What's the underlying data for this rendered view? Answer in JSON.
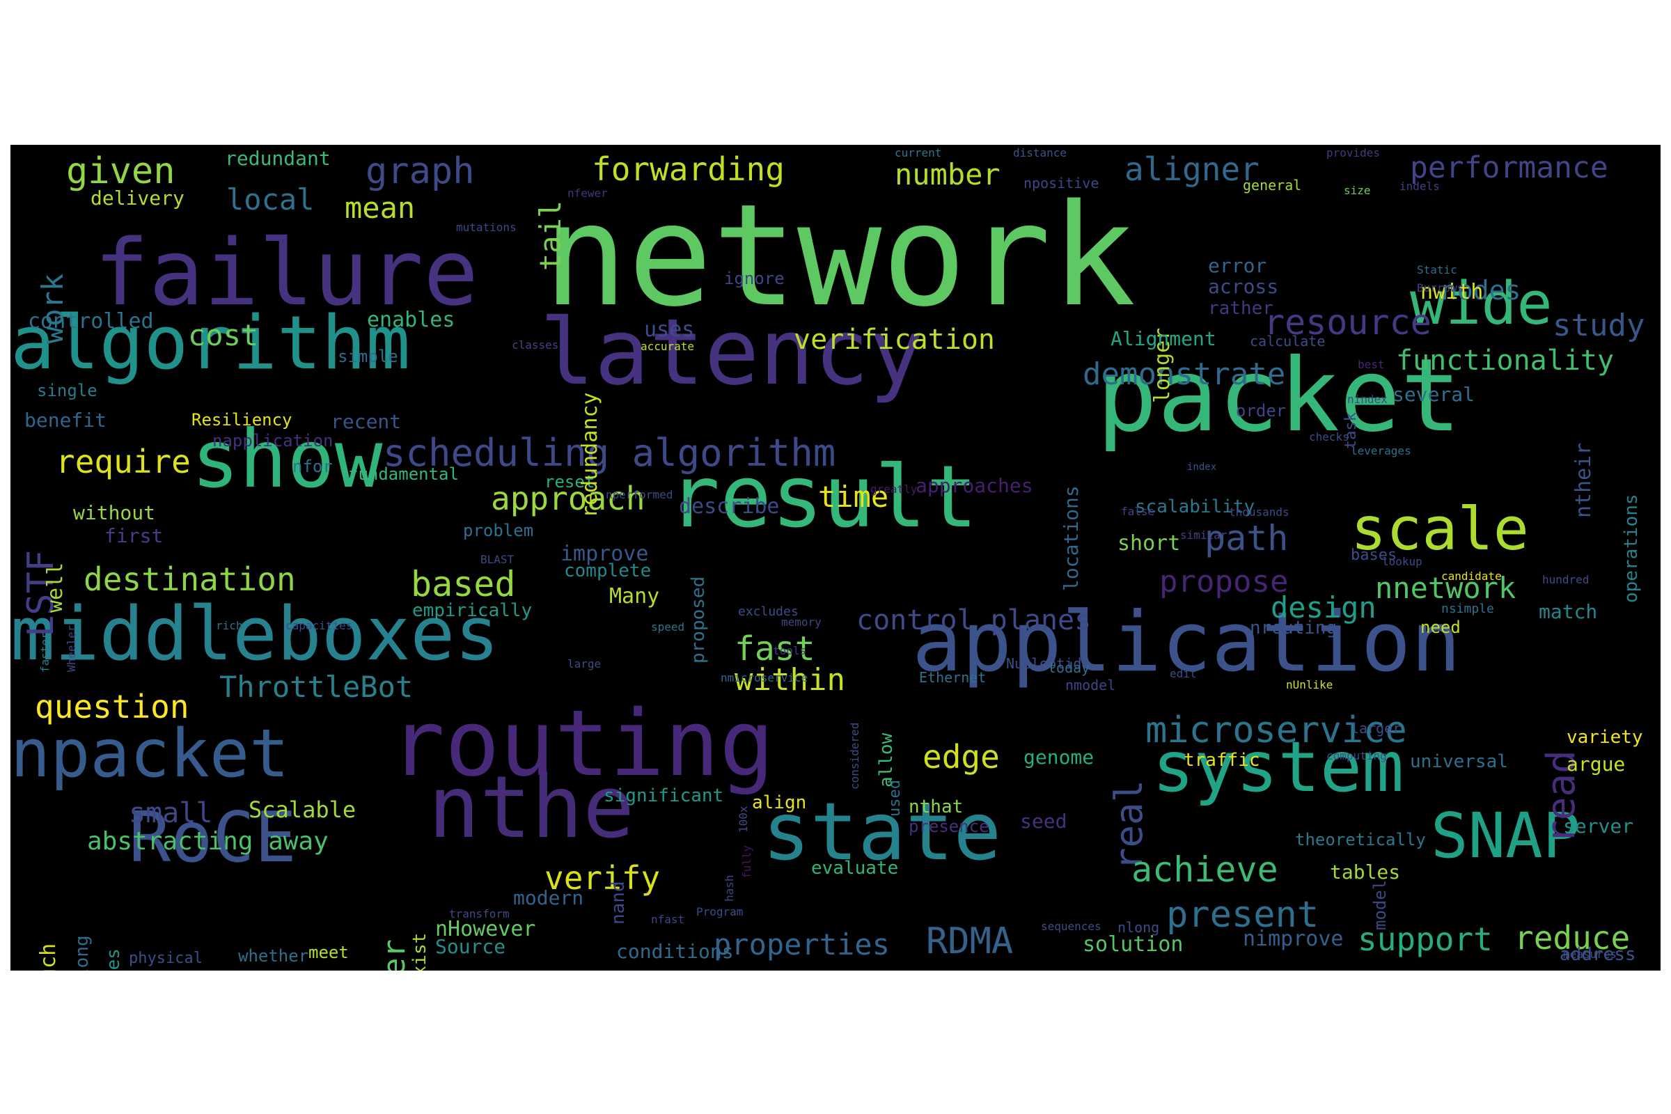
{
  "words": [
    {
      "t": "network",
      "c": "#5ec962"
    },
    {
      "t": "failure",
      "c": "#46327e"
    },
    {
      "t": "packet",
      "c": "#35b779"
    },
    {
      "t": "algorithm",
      "c": "#21918c"
    },
    {
      "t": "latency",
      "c": "#46327e"
    },
    {
      "t": "result",
      "c": "#35b779"
    },
    {
      "t": "show",
      "c": "#2fb47c"
    },
    {
      "t": "middleboxes",
      "c": "#26828e"
    },
    {
      "t": "application",
      "c": "#3b528b"
    },
    {
      "t": "routing",
      "c": "#482878"
    },
    {
      "t": "npacket",
      "c": "#365c8d"
    },
    {
      "t": "nthe",
      "c": "#472c7a"
    },
    {
      "t": "state",
      "c": "#25838e"
    },
    {
      "t": "system",
      "c": "#20a386"
    },
    {
      "t": "RoCE",
      "c": "#3b528b"
    },
    {
      "t": "SNAP",
      "c": "#1fa188"
    },
    {
      "t": "scale",
      "c": "#addc30"
    },
    {
      "t": "wide",
      "c": "#35b779"
    },
    {
      "t": "given",
      "c": "#90d743"
    },
    {
      "t": "graph",
      "c": "#3e4a89"
    },
    {
      "t": "forwarding",
      "c": "#c2df23"
    },
    {
      "t": "number",
      "c": "#b5de2b"
    },
    {
      "t": "aligner",
      "c": "#31688e"
    },
    {
      "t": "performance",
      "c": "#414487"
    },
    {
      "t": "local",
      "c": "#2c728e"
    },
    {
      "t": "mean",
      "c": "#b8de29"
    },
    {
      "t": "tail",
      "c": "#7ad151"
    },
    {
      "t": "work",
      "c": "#2a788e"
    },
    {
      "t": "cost",
      "c": "#6ccd5a"
    },
    {
      "t": "verification",
      "c": "#bddf26"
    },
    {
      "t": "resource",
      "c": "#443983"
    },
    {
      "t": "study",
      "c": "#38588c"
    },
    {
      "t": "nodes",
      "c": "#2d708e"
    },
    {
      "t": "functionality",
      "c": "#42be71"
    },
    {
      "t": "demonstrate",
      "c": "#306a8e"
    },
    {
      "t": "scheduling algorithm",
      "c": "#3e4989"
    },
    {
      "t": "require",
      "c": "#dde318"
    },
    {
      "t": "approach",
      "c": "#9bd93c"
    },
    {
      "t": "time",
      "c": "#e5e419"
    },
    {
      "t": "LSTF",
      "c": "#433e85"
    },
    {
      "t": "destination",
      "c": "#8ed645"
    },
    {
      "t": "based",
      "c": "#95d840"
    },
    {
      "t": "path",
      "c": "#3b528b"
    },
    {
      "t": "propose",
      "c": "#482475"
    },
    {
      "t": "design",
      "c": "#1f9e89"
    },
    {
      "t": "nnetwork",
      "c": "#52c569"
    },
    {
      "t": "control planes",
      "c": "#3e4a89"
    },
    {
      "t": "fast",
      "c": "#73d056"
    },
    {
      "t": "within",
      "c": "#c8e020"
    },
    {
      "t": "ThrottleBot",
      "c": "#27808e"
    },
    {
      "t": "question",
      "c": "#fde725"
    },
    {
      "t": "microservice",
      "c": "#2b748e"
    },
    {
      "t": "edge",
      "c": "#d0e11c"
    },
    {
      "t": "read",
      "c": "#472d7b"
    },
    {
      "t": "real",
      "c": "#3d4d8a"
    },
    {
      "t": "achieve",
      "c": "#3bbb75"
    },
    {
      "t": "verify",
      "c": "#d8e219"
    },
    {
      "t": "present",
      "c": "#2e6e8e"
    },
    {
      "t": "support",
      "c": "#26ad81"
    },
    {
      "t": "reduce",
      "c": "#77d153"
    },
    {
      "t": "RDMA",
      "c": "#33638d"
    },
    {
      "t": "properties",
      "c": "#32658e"
    },
    {
      "t": "header",
      "c": "#5ac864"
    },
    {
      "t": "small",
      "c": "#3f4788"
    },
    {
      "t": "Scalable",
      "c": "#a2da37"
    },
    {
      "t": "abstracting away",
      "c": "#4ac16d"
    },
    {
      "t": "redundant",
      "c": "#3aba76"
    },
    {
      "t": "delivery",
      "c": "#b5de2b"
    },
    {
      "t": "controlled",
      "c": "#2c738e"
    },
    {
      "t": "enables",
      "c": "#31b57b"
    },
    {
      "t": "uses",
      "c": "#3e4c8a"
    },
    {
      "t": "simple",
      "c": "#2f6c8e"
    },
    {
      "t": "single",
      "c": "#287c8e"
    },
    {
      "t": "benefit",
      "c": "#31668e"
    },
    {
      "t": "Resiliency",
      "c": "#e2e418"
    },
    {
      "t": "recent",
      "c": "#3a548c"
    },
    {
      "t": "napplication",
      "c": "#46307e"
    },
    {
      "t": "nfor",
      "c": "#2d708e"
    },
    {
      "t": "fundamental",
      "c": "#35b779"
    },
    {
      "t": "reset",
      "c": "#29af7f"
    },
    {
      "t": "without",
      "c": "#98d83e"
    },
    {
      "t": "first",
      "c": "#433e85"
    },
    {
      "t": "well",
      "c": "#a8db34"
    },
    {
      "t": "problem",
      "c": "#2d708e"
    },
    {
      "t": "improve",
      "c": "#38588c"
    },
    {
      "t": "complete",
      "c": "#23898e"
    },
    {
      "t": "Many",
      "c": "#b0dd2f"
    },
    {
      "t": "empirically",
      "c": "#1e9b8a"
    },
    {
      "t": "approaches",
      "c": "#481f70"
    },
    {
      "t": "describe",
      "c": "#3e4989"
    },
    {
      "t": "locations",
      "c": "#31688e"
    },
    {
      "t": "scalability",
      "c": "#2a788e"
    },
    {
      "t": "short",
      "c": "#7ad151"
    },
    {
      "t": "error",
      "c": "#31668e"
    },
    {
      "t": "across",
      "c": "#3e4a89"
    },
    {
      "t": "rather",
      "c": "#453882"
    },
    {
      "t": "longer",
      "c": "#b2dd2d"
    },
    {
      "t": "redundancy",
      "c": "#c5e021"
    },
    {
      "t": "Alignment",
      "c": "#22a785"
    },
    {
      "t": "nwith",
      "c": "#dde318"
    },
    {
      "t": "several",
      "c": "#2c728e"
    },
    {
      "t": "order",
      "c": "#414487"
    },
    {
      "t": "ntheir",
      "c": "#3b528b"
    },
    {
      "t": "operations",
      "c": "#26828e"
    },
    {
      "t": "match",
      "c": "#25858e"
    },
    {
      "t": "nrouting",
      "c": "#3b528b"
    },
    {
      "t": "need",
      "c": "#c0df25"
    },
    {
      "t": "variety",
      "c": "#f1e51d"
    },
    {
      "t": "argue",
      "c": "#c8e020"
    },
    {
      "t": "universal",
      "c": "#2d708e"
    },
    {
      "t": "server",
      "c": "#21918c"
    },
    {
      "t": "theoretically",
      "c": "#2a788e"
    },
    {
      "t": "tables",
      "c": "#a0da39"
    },
    {
      "t": "solution",
      "c": "#54c568"
    },
    {
      "t": "nimprove",
      "c": "#35608d"
    },
    {
      "t": "address",
      "c": "#3b528b"
    },
    {
      "t": "genome",
      "c": "#27ad81"
    },
    {
      "t": "traffic",
      "c": "#e7e419"
    },
    {
      "t": "seed",
      "c": "#46327e"
    },
    {
      "t": "nthat",
      "c": "#8bd646"
    },
    {
      "t": "presence",
      "c": "#472f7d"
    },
    {
      "t": "align",
      "c": "#e5e419"
    },
    {
      "t": "significant",
      "c": "#1f9a8a"
    },
    {
      "t": "evaluate",
      "c": "#31b57b"
    },
    {
      "t": "modern",
      "c": "#33638d"
    },
    {
      "t": "proposed",
      "c": "#2c728e"
    },
    {
      "t": "exist",
      "c": "#addc30"
    },
    {
      "t": "nHowever",
      "c": "#63cb5f"
    },
    {
      "t": "Source",
      "c": "#21918c"
    },
    {
      "t": "conditions",
      "c": "#2f6b8e"
    },
    {
      "t": "much",
      "c": "#d5e21a"
    },
    {
      "t": "long",
      "c": "#306a8e"
    },
    {
      "t": "slices",
      "c": "#21918c"
    },
    {
      "t": "physical",
      "c": "#3d4e8a"
    },
    {
      "t": "whether",
      "c": "#2d708e"
    },
    {
      "t": "meet",
      "c": "#b8de29"
    },
    {
      "t": "nand",
      "c": "#3e4989"
    },
    {
      "t": "allow",
      "c": "#3bbb75"
    },
    {
      "t": "used",
      "c": "#2e6f8e"
    },
    {
      "t": "model",
      "c": "#3f4788"
    },
    {
      "t": "task",
      "c": "#3e4c8a"
    },
    {
      "t": "current",
      "c": "#2a788e"
    },
    {
      "t": "distance",
      "c": "#39568c"
    },
    {
      "t": "provides",
      "c": "#443983"
    },
    {
      "t": "npositive",
      "c": "#3f4788"
    },
    {
      "t": "general",
      "c": "#a5db36"
    },
    {
      "t": "size",
      "c": "#6ccd5a"
    },
    {
      "t": "indels",
      "c": "#433e85"
    },
    {
      "t": "nfewer",
      "c": "#46337f"
    },
    {
      "t": "mutations",
      "c": "#3e4989"
    },
    {
      "t": "ignore",
      "c": "#3f4788"
    },
    {
      "t": "Static",
      "c": "#2f6c8e"
    },
    {
      "t": "Burrows",
      "c": "#414487"
    },
    {
      "t": "classes",
      "c": "#404688"
    },
    {
      "t": "accurate",
      "c": "#c2df23"
    },
    {
      "t": "calculate",
      "c": "#3d4d8a"
    },
    {
      "t": "best",
      "c": "#482576"
    },
    {
      "t": "nindex",
      "c": "#3f4788"
    },
    {
      "t": "checks",
      "c": "#3e4a89"
    },
    {
      "t": "leverages",
      "c": "#2d708e"
    },
    {
      "t": "index",
      "c": "#3a548c"
    },
    {
      "t": "greatly",
      "c": "#481a6c"
    },
    {
      "t": "nperformed",
      "c": "#3e4a89"
    },
    {
      "t": "false",
      "c": "#3f4788"
    },
    {
      "t": "BLAST",
      "c": "#3e4989"
    },
    {
      "t": "thousands",
      "c": "#3e4a89"
    },
    {
      "t": "similar",
      "c": "#404588"
    },
    {
      "t": "bases",
      "c": "#3d4d8a"
    },
    {
      "t": "lookup",
      "c": "#3e4a89"
    },
    {
      "t": "candidate",
      "c": "#e8e419"
    },
    {
      "t": "hundred",
      "c": "#3e4c8a"
    },
    {
      "t": "nsimple",
      "c": "#2c738e"
    },
    {
      "t": "faster",
      "c": "#26828e"
    },
    {
      "t": "Wheeler",
      "c": "#3e4989"
    },
    {
      "t": "rich",
      "c": "#2c728e"
    },
    {
      "t": "capacities",
      "c": "#3e4c8a"
    },
    {
      "t": "speed",
      "c": "#2a768e"
    },
    {
      "t": "excludes",
      "c": "#3e4c8a"
    },
    {
      "t": "memory",
      "c": "#3f4788"
    },
    {
      "t": "tools",
      "c": "#443983"
    },
    {
      "t": "large",
      "c": "#3e4c8a"
    },
    {
      "t": "nmicroservice",
      "c": "#2f6c8e"
    },
    {
      "t": "Ethernet",
      "c": "#2c728e"
    },
    {
      "t": "Nucleotide",
      "c": "#3d4e8a"
    },
    {
      "t": "today",
      "c": "#2e6e8e"
    },
    {
      "t": "nmodel",
      "c": "#404588"
    },
    {
      "t": "edit",
      "c": "#3d4e8a"
    },
    {
      "t": "nUnlike",
      "c": "#d2e21b"
    },
    {
      "t": "larger",
      "c": "#3e4a89"
    },
    {
      "t": "computing",
      "c": "#3e4c8a"
    },
    {
      "t": "considered",
      "c": "#3d4e8a"
    },
    {
      "t": "100x",
      "c": "#3e4a89"
    },
    {
      "t": "fully",
      "c": "#481467"
    },
    {
      "t": "hash",
      "c": "#3f4788"
    },
    {
      "t": "transform",
      "c": "#3e4989"
    },
    {
      "t": "Program",
      "c": "#3d4d8a"
    },
    {
      "t": "nfast",
      "c": "#3f4788"
    },
    {
      "t": "sequences",
      "c": "#3e4c8a"
    },
    {
      "t": "nlong",
      "c": "#3e4c8a"
    },
    {
      "t": "measures",
      "c": "#3d4e8a"
    }
  ]
}
